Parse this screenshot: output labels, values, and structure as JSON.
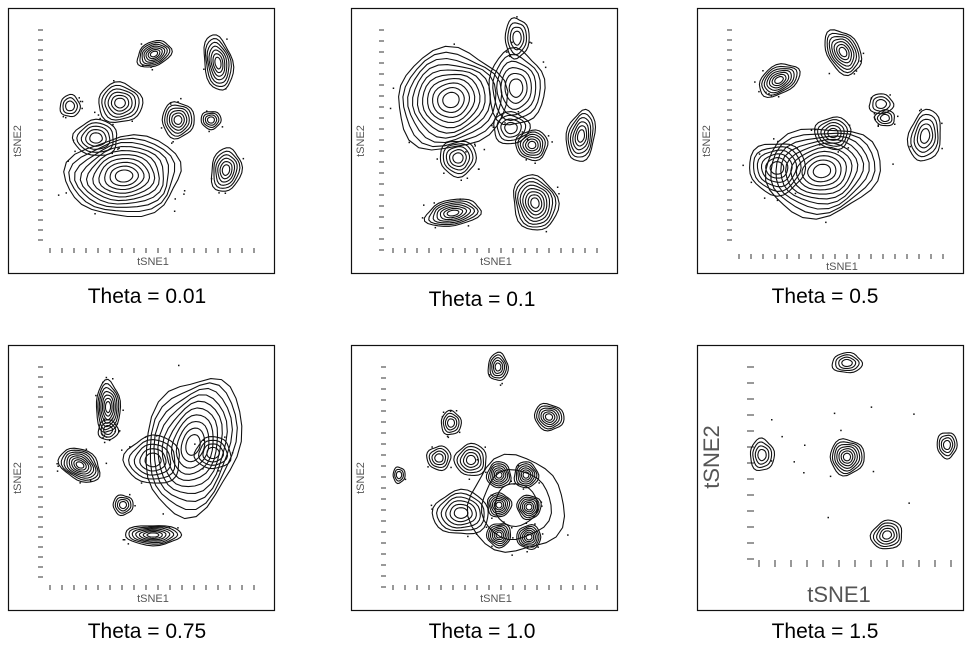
{
  "chart_data": [
    {
      "type": "contour",
      "caption": "Theta = 0.01",
      "xlabel": "tSNE1",
      "ylabel": "tSNE2"
    },
    {
      "type": "contour",
      "caption": "Theta = 0.1",
      "xlabel": "tSNE1",
      "ylabel": "tSNE2"
    },
    {
      "type": "contour",
      "caption": "Theta = 0.5",
      "xlabel": "tSNE1",
      "ylabel": "tSNE2"
    },
    {
      "type": "contour",
      "caption": "Theta = 0.75",
      "xlabel": "tSNE1",
      "ylabel": "tSNE2"
    },
    {
      "type": "contour",
      "caption": "Theta = 1.0",
      "xlabel": "tSNE1",
      "ylabel": "tSNE2"
    },
    {
      "type": "contour",
      "caption": "Theta = 1.5",
      "xlabel": "tSNE1",
      "ylabel": "tSNE2"
    }
  ]
}
